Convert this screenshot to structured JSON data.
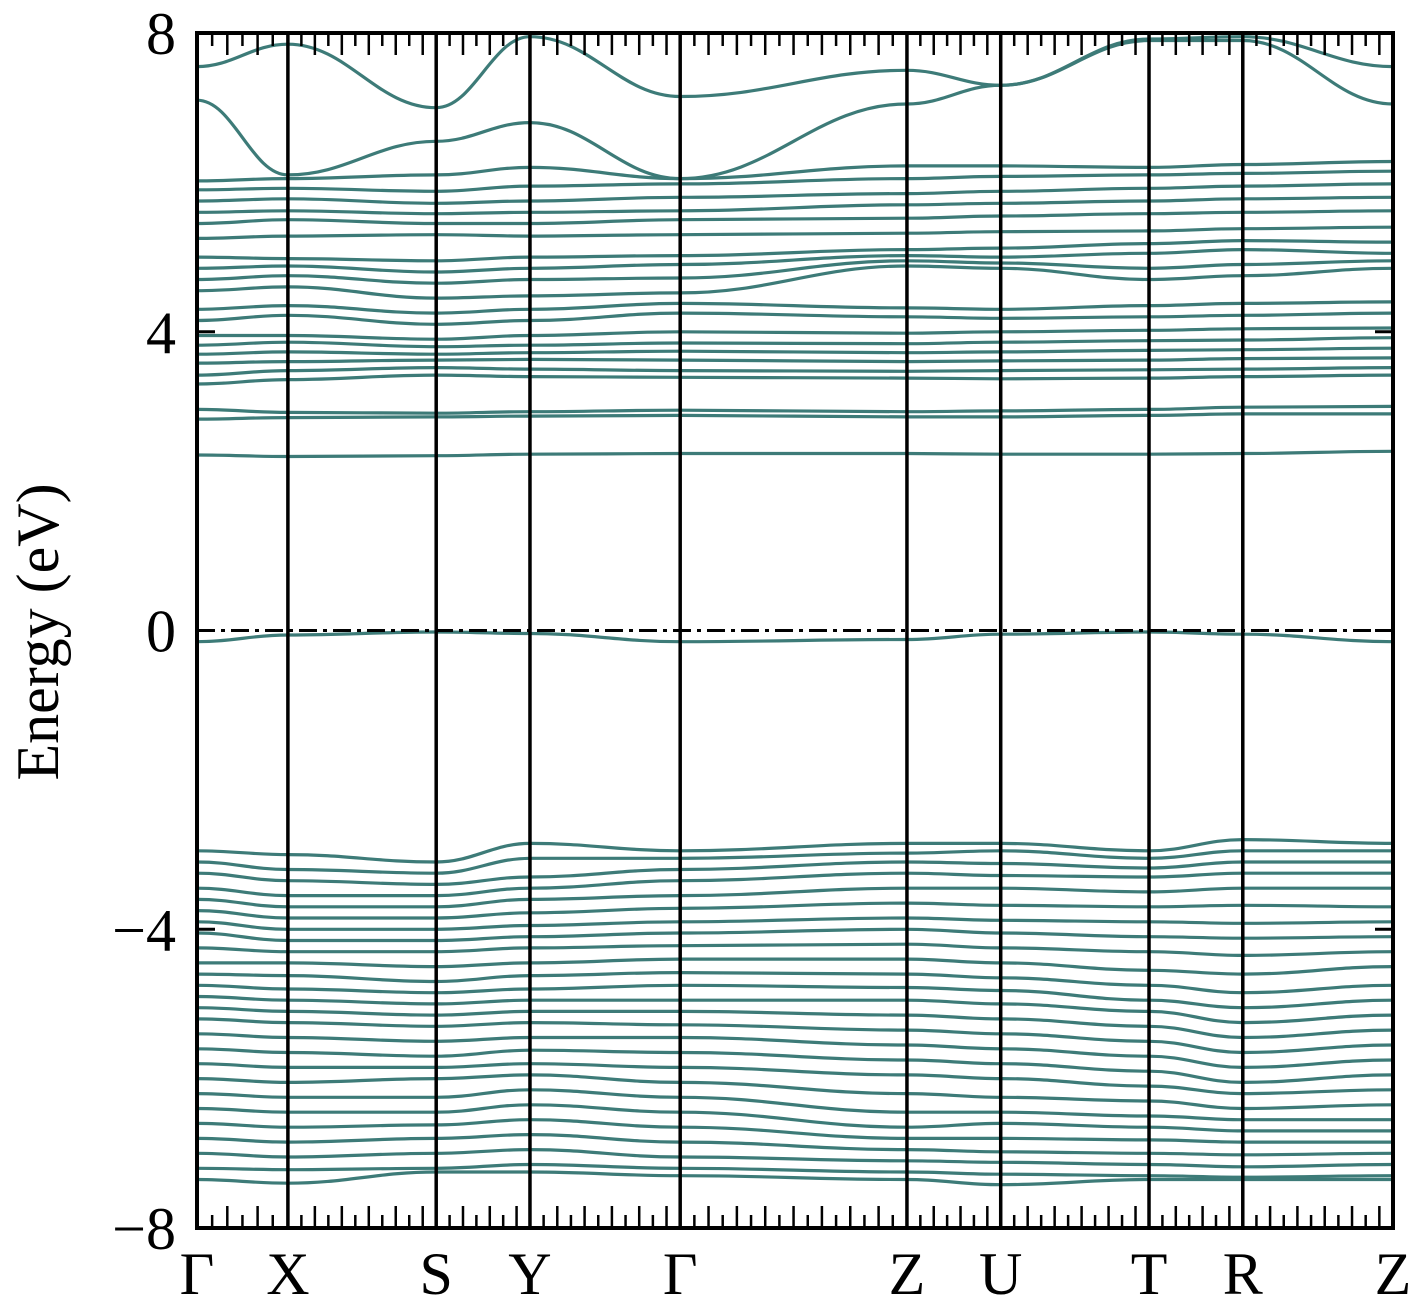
{
  "chart_data": {
    "type": "line",
    "title": "",
    "xlabel": "",
    "ylabel": "Energy (eV)",
    "ylim": [
      -8,
      8
    ],
    "yticks": [
      {
        "value": 8,
        "label": "8"
      },
      {
        "value": 4,
        "label": "4"
      },
      {
        "value": 0,
        "label": "0"
      },
      {
        "value": -4,
        "label": "−4"
      },
      {
        "value": -8,
        "label": "−8"
      }
    ],
    "kpoints": [
      {
        "label": "Γ",
        "x": 0.0
      },
      {
        "label": "X",
        "x": 0.95
      },
      {
        "label": "S",
        "x": 2.5
      },
      {
        "label": "Y",
        "x": 3.48
      },
      {
        "label": "Γ",
        "x": 5.05
      },
      {
        "label": "Z",
        "x": 7.42
      },
      {
        "label": "U",
        "x": 8.4
      },
      {
        "label": "T",
        "x": 9.95
      },
      {
        "label": "R",
        "x": 10.93
      },
      {
        "label": "Z",
        "x": 12.5
      }
    ],
    "fermi_level": 0,
    "line_color": "#3d7b78",
    "grid": false,
    "legend": "none",
    "bands": [
      [
        -0.15,
        -0.06,
        -0.02,
        -0.04,
        -0.15,
        -0.12,
        -0.05,
        -0.02,
        -0.05,
        -0.15
      ],
      [
        2.35,
        2.33,
        2.34,
        2.36,
        2.37,
        2.37,
        2.36,
        2.36,
        2.37,
        2.4
      ],
      [
        2.83,
        2.85,
        2.86,
        2.87,
        2.88,
        2.86,
        2.86,
        2.88,
        2.9,
        2.9
      ],
      [
        2.96,
        2.92,
        2.91,
        2.93,
        2.95,
        2.93,
        2.94,
        2.96,
        2.99,
        3.0
      ],
      [
        3.3,
        3.36,
        3.42,
        3.4,
        3.39,
        3.38,
        3.37,
        3.38,
        3.4,
        3.42
      ],
      [
        3.42,
        3.48,
        3.52,
        3.5,
        3.48,
        3.47,
        3.48,
        3.49,
        3.5,
        3.52
      ],
      [
        3.58,
        3.6,
        3.62,
        3.63,
        3.62,
        3.6,
        3.61,
        3.62,
        3.64,
        3.65
      ],
      [
        3.7,
        3.73,
        3.7,
        3.72,
        3.74,
        3.72,
        3.73,
        3.75,
        3.76,
        3.78
      ],
      [
        3.82,
        3.86,
        3.8,
        3.82,
        3.85,
        3.84,
        3.86,
        3.88,
        3.89,
        3.92
      ],
      [
        3.95,
        3.95,
        3.9,
        3.95,
        4.0,
        3.98,
        4.0,
        4.02,
        4.04,
        4.05
      ],
      [
        4.15,
        4.22,
        4.1,
        4.15,
        4.25,
        4.2,
        4.18,
        4.2,
        4.22,
        4.25
      ],
      [
        4.3,
        4.35,
        4.25,
        4.3,
        4.38,
        4.32,
        4.3,
        4.35,
        4.38,
        4.4
      ],
      [
        4.55,
        4.6,
        4.45,
        4.48,
        4.52,
        4.88,
        4.85,
        4.7,
        4.75,
        4.85
      ],
      [
        4.7,
        4.75,
        4.65,
        4.7,
        4.72,
        4.95,
        4.92,
        4.85,
        4.9,
        4.95
      ],
      [
        4.85,
        4.88,
        4.8,
        4.85,
        4.9,
        5.02,
        5.0,
        5.05,
        5.1,
        5.05
      ],
      [
        5.0,
        4.98,
        4.95,
        5.0,
        5.02,
        5.1,
        5.12,
        5.18,
        5.22,
        5.2
      ],
      [
        5.25,
        5.28,
        5.3,
        5.28,
        5.3,
        5.32,
        5.34,
        5.35,
        5.38,
        5.4
      ],
      [
        5.45,
        5.5,
        5.45,
        5.45,
        5.5,
        5.52,
        5.55,
        5.58,
        5.6,
        5.62
      ],
      [
        5.6,
        5.62,
        5.58,
        5.6,
        5.62,
        5.7,
        5.72,
        5.75,
        5.78,
        5.8
      ],
      [
        5.75,
        5.78,
        5.72,
        5.75,
        5.8,
        5.85,
        5.88,
        5.92,
        5.95,
        5.98
      ],
      [
        5.9,
        5.92,
        5.88,
        5.95,
        5.98,
        6.05,
        6.08,
        6.1,
        6.12,
        6.15
      ],
      [
        6.02,
        6.05,
        6.1,
        6.2,
        6.05,
        6.22,
        6.22,
        6.2,
        6.24,
        6.28
      ],
      [
        7.1,
        6.1,
        6.55,
        6.8,
        6.05,
        7.05,
        7.3,
        7.9,
        7.9,
        7.05
      ],
      [
        7.55,
        7.85,
        7.0,
        7.95,
        7.15,
        7.5,
        7.3,
        7.92,
        7.95,
        7.55
      ],
      [
        -2.95,
        -3.0,
        -3.1,
        -2.85,
        -2.95,
        -2.85,
        -2.85,
        -2.95,
        -2.8,
        -2.85
      ],
      [
        -3.1,
        -3.2,
        -3.25,
        -3.05,
        -3.05,
        -2.98,
        -2.95,
        -3.05,
        -2.95,
        -2.95
      ],
      [
        -3.25,
        -3.35,
        -3.4,
        -3.3,
        -3.2,
        -3.1,
        -3.12,
        -3.18,
        -3.1,
        -3.1
      ],
      [
        -3.45,
        -3.55,
        -3.55,
        -3.45,
        -3.35,
        -3.25,
        -3.28,
        -3.3,
        -3.25,
        -3.25
      ],
      [
        -3.6,
        -3.7,
        -3.7,
        -3.6,
        -3.55,
        -3.45,
        -3.45,
        -3.5,
        -3.45,
        -3.45
      ],
      [
        -3.75,
        -3.85,
        -3.85,
        -3.78,
        -3.72,
        -3.65,
        -3.68,
        -3.7,
        -3.68,
        -3.7
      ],
      [
        -3.9,
        -4.0,
        -4.0,
        -3.95,
        -3.9,
        -3.85,
        -3.88,
        -3.9,
        -3.92,
        -3.9
      ],
      [
        -4.05,
        -4.15,
        -4.15,
        -4.1,
        -4.05,
        -4.0,
        -4.05,
        -4.1,
        -4.12,
        -4.1
      ],
      [
        -4.25,
        -4.3,
        -4.3,
        -4.25,
        -4.22,
        -4.2,
        -4.25,
        -4.3,
        -4.35,
        -4.3
      ],
      [
        -4.45,
        -4.45,
        -4.5,
        -4.45,
        -4.4,
        -4.4,
        -4.45,
        -4.55,
        -4.6,
        -4.5
      ],
      [
        -4.6,
        -4.62,
        -4.7,
        -4.62,
        -4.58,
        -4.6,
        -4.65,
        -4.75,
        -4.85,
        -4.75
      ],
      [
        -4.75,
        -4.8,
        -4.85,
        -4.8,
        -4.75,
        -4.78,
        -4.82,
        -4.95,
        -5.05,
        -4.95
      ],
      [
        -4.9,
        -4.95,
        -5.0,
        -4.95,
        -4.95,
        -4.95,
        -5.0,
        -5.1,
        -5.25,
        -5.15
      ],
      [
        -5.05,
        -5.1,
        -5.15,
        -5.1,
        -5.1,
        -5.15,
        -5.2,
        -5.3,
        -5.45,
        -5.35
      ],
      [
        -5.2,
        -5.25,
        -5.3,
        -5.25,
        -5.28,
        -5.35,
        -5.4,
        -5.5,
        -5.65,
        -5.55
      ],
      [
        -5.4,
        -5.45,
        -5.5,
        -5.45,
        -5.45,
        -5.55,
        -5.6,
        -5.7,
        -5.85,
        -5.75
      ],
      [
        -5.6,
        -5.65,
        -5.7,
        -5.62,
        -5.65,
        -5.75,
        -5.8,
        -5.9,
        -6.05,
        -5.95
      ],
      [
        -5.8,
        -5.85,
        -5.85,
        -5.8,
        -5.85,
        -5.95,
        -6.0,
        -6.1,
        -6.2,
        -6.15
      ],
      [
        -6.0,
        -6.05,
        -6.0,
        -5.95,
        -6.05,
        -6.2,
        -6.25,
        -6.3,
        -6.4,
        -6.35
      ],
      [
        -6.2,
        -6.25,
        -6.25,
        -6.15,
        -6.25,
        -6.45,
        -6.45,
        -6.5,
        -6.55,
        -6.55
      ],
      [
        -6.4,
        -6.45,
        -6.45,
        -6.35,
        -6.45,
        -6.65,
        -6.6,
        -6.65,
        -6.7,
        -6.7
      ],
      [
        -6.6,
        -6.65,
        -6.62,
        -6.55,
        -6.65,
        -6.8,
        -6.8,
        -6.82,
        -6.85,
        -6.85
      ],
      [
        -6.8,
        -6.85,
        -6.8,
        -6.75,
        -6.85,
        -6.95,
        -6.98,
        -7.0,
        -7.02,
        -7.0
      ],
      [
        -7.0,
        -7.05,
        -7.0,
        -6.95,
        -7.05,
        -7.1,
        -7.12,
        -7.15,
        -7.18,
        -7.15
      ],
      [
        -7.2,
        -7.22,
        -7.2,
        -7.15,
        -7.2,
        -7.25,
        -7.28,
        -7.3,
        -7.32,
        -7.3
      ],
      [
        -7.35,
        -7.4,
        -7.25,
        -7.25,
        -7.3,
        -7.35,
        -7.42,
        -7.35,
        -7.35,
        -7.35
      ]
    ]
  }
}
